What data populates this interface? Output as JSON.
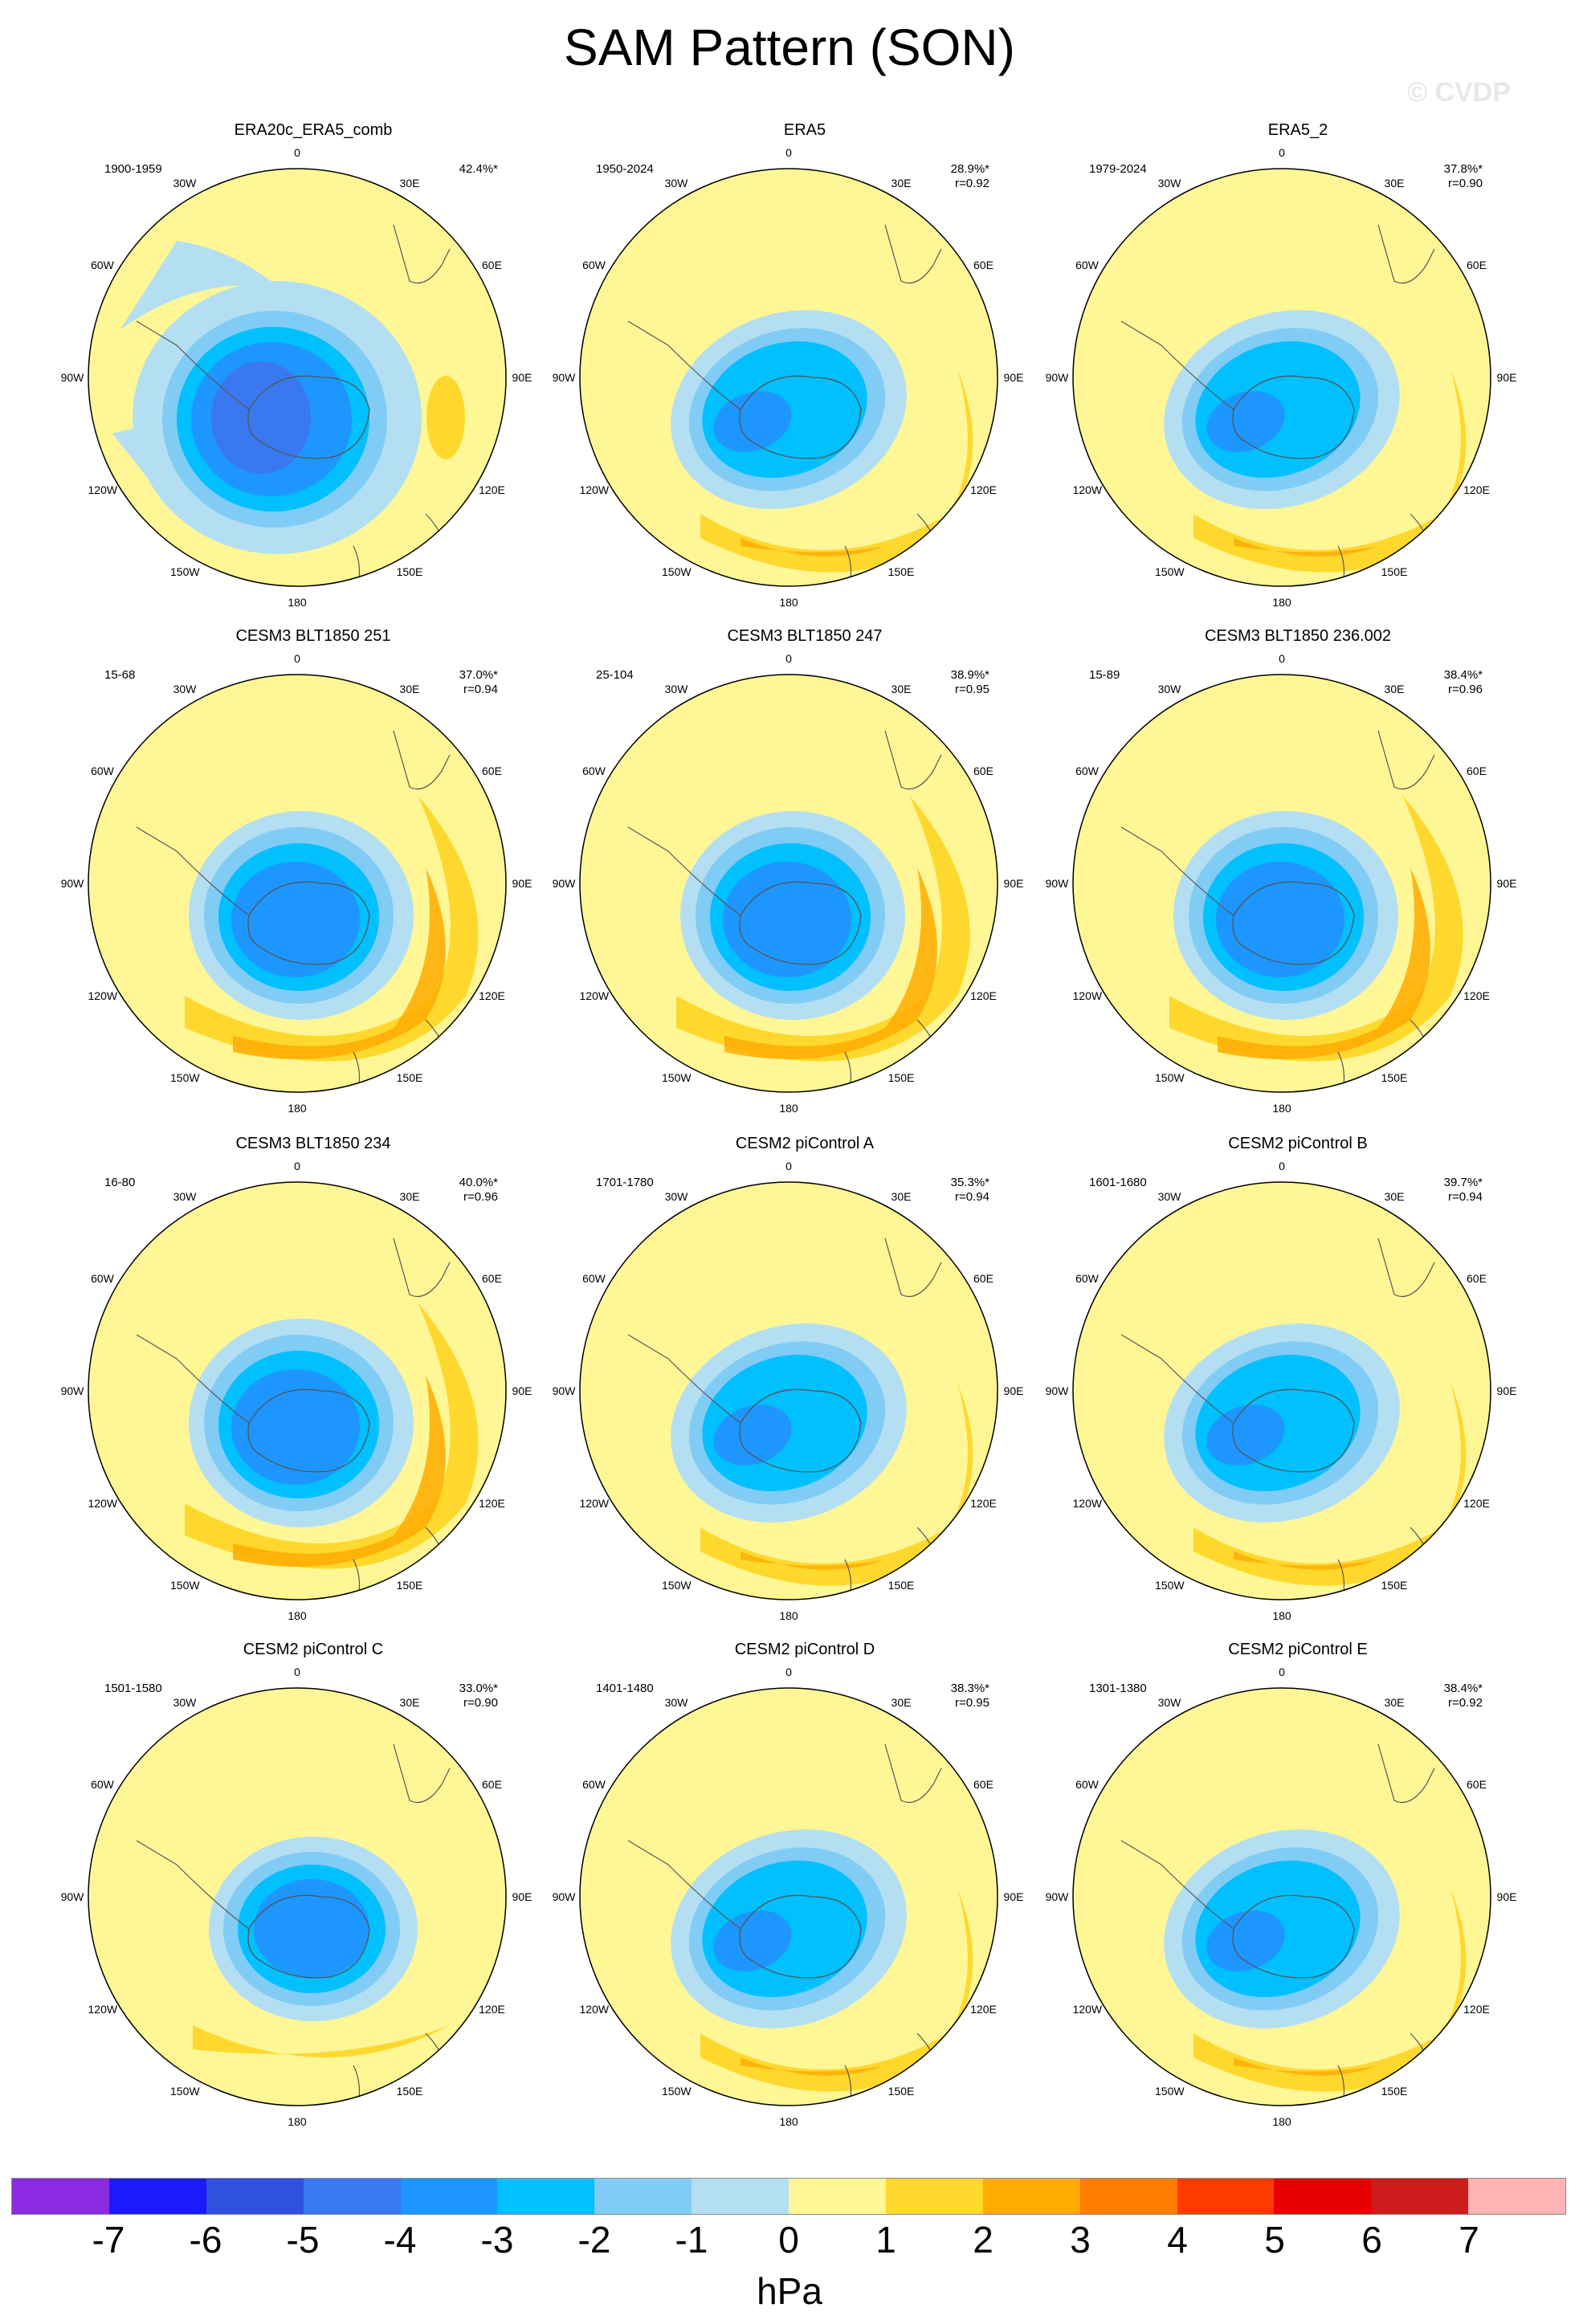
{
  "title": "SAM Pattern (SON)",
  "copyright": "© CVDP",
  "units": "hPa",
  "lon_labels": [
    "0",
    "30E",
    "60E",
    "90E",
    "120E",
    "150E",
    "180",
    "150W",
    "120W",
    "90W",
    "60W",
    "30W"
  ],
  "panels": [
    {
      "title": "ERA20c_ERA5_comb",
      "period": "1900-1959",
      "pct": "42.4%*",
      "r": "",
      "style": "a"
    },
    {
      "title": "ERA5",
      "period": "1950-2024",
      "pct": "28.9%*",
      "r": "r=0.92",
      "style": "b"
    },
    {
      "title": "ERA5_2",
      "period": "1979-2024",
      "pct": "37.8%*",
      "r": "r=0.90",
      "style": "b"
    },
    {
      "title": "CESM3 BLT1850 251",
      "period": "15-68",
      "pct": "37.0%*",
      "r": "r=0.94",
      "style": "c"
    },
    {
      "title": "CESM3 BLT1850 247",
      "period": "25-104",
      "pct": "38.9%*",
      "r": "r=0.95",
      "style": "c"
    },
    {
      "title": "CESM3 BLT1850 236.002",
      "period": "15-89",
      "pct": "38.4%*",
      "r": "r=0.96",
      "style": "c"
    },
    {
      "title": "CESM3 BLT1850 234",
      "period": "16-80",
      "pct": "40.0%*",
      "r": "r=0.96",
      "style": "c"
    },
    {
      "title": "CESM2 piControl A",
      "period": "1701-1780",
      "pct": "35.3%*",
      "r": "r=0.94",
      "style": "b"
    },
    {
      "title": "CESM2 piControl B",
      "period": "1601-1680",
      "pct": "39.7%*",
      "r": "r=0.94",
      "style": "b"
    },
    {
      "title": "CESM2 piControl C",
      "period": "1501-1580",
      "pct": "33.0%*",
      "r": "r=0.90",
      "style": "d"
    },
    {
      "title": "CESM2 piControl D",
      "period": "1401-1480",
      "pct": "38.3%*",
      "r": "r=0.95",
      "style": "b"
    },
    {
      "title": "CESM2 piControl E",
      "period": "1301-1380",
      "pct": "38.4%*",
      "r": "r=0.92",
      "style": "b"
    }
  ],
  "colorbar": {
    "colors": [
      "#8a2be2",
      "#1a1aff",
      "#3050e0",
      "#3a78f0",
      "#1e96ff",
      "#00c0ff",
      "#80ccf5",
      "#b4dff2",
      "#fff796",
      "#ffd82e",
      "#ffab00",
      "#ff7d00",
      "#ff3a00",
      "#e80000",
      "#cc1c1c",
      "#ffb3b3"
    ],
    "ticks": [
      "-7",
      "-6",
      "-5",
      "-4",
      "-3",
      "-2",
      "-1",
      "0",
      "1",
      "2",
      "3",
      "4",
      "5",
      "6",
      "7"
    ]
  }
}
